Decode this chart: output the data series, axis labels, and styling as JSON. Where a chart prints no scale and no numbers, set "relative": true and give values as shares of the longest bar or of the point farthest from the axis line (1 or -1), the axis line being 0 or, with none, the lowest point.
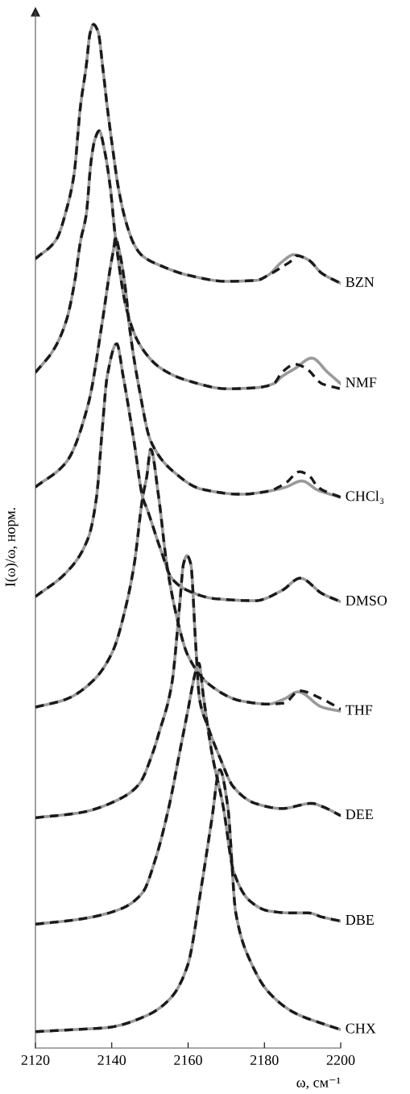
{
  "chart_data": {
    "type": "line",
    "relative": true,
    "xlabel": "ω, см⁻¹",
    "ylabel": "I(ω)/ω, норм.",
    "xlim": [
      2120,
      2200
    ],
    "xticks": [
      2120,
      2140,
      2160,
      2180,
      2200
    ],
    "legend": false,
    "grid": false,
    "series": [
      {
        "name": "BZN",
        "color": "#9a9a9a",
        "line_style": "solid",
        "x": [
          2120,
          2125.5,
          2128.2,
          2130.1,
          2131.8,
          2133.3,
          2134.3,
          2135.2,
          2136.4,
          2137.7,
          2138.8,
          2140.3,
          2141.7,
          2143.8,
          2146,
          2148,
          2153,
          2160,
          2170,
          2178,
          2181,
          2184.6,
          2187.7,
          2191.5,
          2195,
          2200
        ],
        "values": [
          0.771,
          0.79,
          0.82,
          0.853,
          0.92,
          0.959,
          0.991,
          1.0,
          0.993,
          0.956,
          0.92,
          0.877,
          0.841,
          0.806,
          0.784,
          0.774,
          0.764,
          0.755,
          0.749,
          0.75,
          0.755,
          0.768,
          0.775,
          0.77,
          0.757,
          0.747
        ]
      },
      {
        "color": "#1a1a1a",
        "line_style": "dashed",
        "x": [
          2120,
          2125.5,
          2128.2,
          2130.1,
          2131.8,
          2133.3,
          2134.3,
          2135.2,
          2136.4,
          2137.7,
          2138.8,
          2140.3,
          2141.7,
          2143.8,
          2146,
          2148,
          2153,
          2160,
          2170,
          2178,
          2181,
          2184.6,
          2187.7,
          2188.4,
          2191.5,
          2195,
          2200
        ],
        "values": [
          0.771,
          0.79,
          0.82,
          0.853,
          0.92,
          0.959,
          0.991,
          1.0,
          0.993,
          0.956,
          0.92,
          0.877,
          0.841,
          0.806,
          0.784,
          0.774,
          0.764,
          0.755,
          0.749,
          0.75,
          0.755,
          0.763,
          0.771,
          0.774,
          0.77,
          0.757,
          0.747
        ]
      },
      {
        "name": "NMF",
        "color": "#9a9a9a",
        "line_style": "solid",
        "x": [
          2120,
          2124.9,
          2128.2,
          2130.3,
          2131.8,
          2133.3,
          2134.6,
          2135.6,
          2136.7,
          2138.1,
          2139.6,
          2140.9,
          2143.8,
          2147.2,
          2152.9,
          2159.9,
          2170.4,
          2177.6,
          2182.4,
          2184.6,
          2188.1,
          2192.4,
          2196.6,
          2200
        ],
        "values": [
          0.66,
          0.683,
          0.712,
          0.749,
          0.788,
          0.814,
          0.867,
          0.888,
          0.896,
          0.877,
          0.841,
          0.794,
          0.723,
          0.688,
          0.664,
          0.652,
          0.644,
          0.645,
          0.649,
          0.656,
          0.664,
          0.674,
          0.66,
          0.649
        ]
      },
      {
        "color": "#1a1a1a",
        "line_style": "dashed",
        "x": [
          2120,
          2124.9,
          2128.2,
          2130.3,
          2131.8,
          2133.3,
          2134.6,
          2135.6,
          2136.7,
          2138.1,
          2139.6,
          2140.9,
          2143.8,
          2147.2,
          2152.9,
          2159.9,
          2170.4,
          2177.6,
          2182.4,
          2184.6,
          2188.1,
          2190.9,
          2195.1,
          2200
        ],
        "values": [
          0.66,
          0.683,
          0.712,
          0.749,
          0.788,
          0.814,
          0.867,
          0.888,
          0.896,
          0.877,
          0.841,
          0.794,
          0.723,
          0.688,
          0.664,
          0.652,
          0.644,
          0.645,
          0.649,
          0.66,
          0.668,
          0.664,
          0.649,
          0.644
        ]
      },
      {
        "name": "CHCl₃",
        "color": "#9a9a9a",
        "line_style": "solid",
        "x": [
          2120,
          2128.2,
          2133.9,
          2137.5,
          2139.6,
          2140.7,
          2140.9,
          2141.9,
          2143.8,
          2144.5,
          2147.2,
          2150.2,
          2156.5,
          2163.5,
          2174,
          2181,
          2185.6,
          2189.8,
          2194,
          2200
        ],
        "values": [
          0.548,
          0.573,
          0.63,
          0.709,
          0.762,
          0.786,
          0.792,
          0.78,
          0.735,
          0.709,
          0.644,
          0.593,
          0.562,
          0.546,
          0.541,
          0.544,
          0.548,
          0.554,
          0.545,
          0.538
        ]
      },
      {
        "color": "#1a1a1a",
        "line_style": "dashed",
        "x": [
          2120,
          2128.2,
          2133.9,
          2137.5,
          2139.6,
          2140.7,
          2140.9,
          2141.9,
          2143.8,
          2144.5,
          2147.2,
          2150.2,
          2156.5,
          2163.5,
          2174,
          2181,
          2185.6,
          2189.2,
          2192,
          2194,
          2200
        ],
        "values": [
          0.548,
          0.573,
          0.63,
          0.709,
          0.762,
          0.786,
          0.792,
          0.78,
          0.735,
          0.709,
          0.644,
          0.593,
          0.562,
          0.546,
          0.541,
          0.544,
          0.552,
          0.563,
          0.558,
          0.548,
          0.538
        ]
      },
      {
        "name": "DMSO",
        "color": "#9a9a9a",
        "line_style": "solid",
        "x": [
          2120,
          2128.2,
          2133.9,
          2136,
          2137.5,
          2138.8,
          2141.3,
          2143,
          2145.9,
          2148.1,
          2149.3,
          2152.9,
          2155.7,
          2159.9,
          2167,
          2177.6,
          2184.6,
          2189.4,
          2195.1,
          2200
        ],
        "values": [
          0.441,
          0.465,
          0.499,
          0.538,
          0.604,
          0.656,
          0.688,
          0.656,
          0.591,
          0.538,
          0.526,
          0.486,
          0.459,
          0.447,
          0.439,
          0.437,
          0.447,
          0.459,
          0.444,
          0.436
        ]
      },
      {
        "color": "#1a1a1a",
        "line_style": "dashed",
        "x": [
          2120,
          2128.2,
          2133.9,
          2136,
          2137.5,
          2138.8,
          2141.3,
          2143,
          2145.9,
          2148.1,
          2149.3,
          2152.9,
          2155.7,
          2159.9,
          2167,
          2177.6,
          2184.6,
          2189.4,
          2195.1,
          2200
        ],
        "values": [
          0.441,
          0.465,
          0.499,
          0.538,
          0.604,
          0.656,
          0.688,
          0.656,
          0.591,
          0.538,
          0.526,
          0.486,
          0.459,
          0.447,
          0.439,
          0.437,
          0.447,
          0.459,
          0.444,
          0.436
        ]
      },
      {
        "name": "THF",
        "color": "#9a9a9a",
        "line_style": "solid",
        "x": [
          2120,
          2128.2,
          2135.4,
          2140.3,
          2143.8,
          2145.9,
          2148.1,
          2149.2,
          2150.2,
          2152.3,
          2154.4,
          2157.1,
          2159.9,
          2165.6,
          2174,
          2181,
          2185.2,
          2188.8,
          2195.1,
          2200
        ],
        "values": [
          0.333,
          0.341,
          0.36,
          0.388,
          0.433,
          0.473,
          0.538,
          0.559,
          0.585,
          0.538,
          0.473,
          0.42,
          0.384,
          0.355,
          0.339,
          0.336,
          0.341,
          0.348,
          0.333,
          0.329
        ]
      },
      {
        "color": "#1a1a1a",
        "line_style": "dashed",
        "x": [
          2120,
          2128.2,
          2135.4,
          2140.3,
          2143.8,
          2145.9,
          2148.1,
          2149.2,
          2150.2,
          2152.3,
          2154.4,
          2157.1,
          2159.9,
          2165.6,
          2174,
          2181,
          2185.2,
          2189.2,
          2195.1,
          2200
        ],
        "values": [
          0.333,
          0.341,
          0.36,
          0.388,
          0.433,
          0.473,
          0.538,
          0.559,
          0.585,
          0.538,
          0.473,
          0.42,
          0.384,
          0.355,
          0.339,
          0.336,
          0.337,
          0.349,
          0.341,
          0.331
        ]
      },
      {
        "name": "DEE",
        "color": "#9a9a9a",
        "line_style": "solid",
        "x": [
          2120,
          2131.8,
          2142.4,
          2147.2,
          2150.8,
          2152.3,
          2155.7,
          2157.8,
          2158.8,
          2159.7,
          2160.7,
          2162,
          2163,
          2165.1,
          2168.3,
          2171.9,
          2177.6,
          2184.6,
          2192.4,
          2195.1,
          2200
        ],
        "values": [
          0.225,
          0.23,
          0.244,
          0.258,
          0.289,
          0.307,
          0.355,
          0.433,
          0.473,
          0.481,
          0.473,
          0.394,
          0.341,
          0.315,
          0.284,
          0.255,
          0.239,
          0.234,
          0.239,
          0.236,
          0.227
        ]
      },
      {
        "color": "#1a1a1a",
        "line_style": "dashed",
        "x": [
          2120,
          2131.8,
          2142.4,
          2147.2,
          2150.8,
          2152.3,
          2155.7,
          2157.8,
          2158.8,
          2159.7,
          2160.7,
          2162,
          2163,
          2165.1,
          2168.3,
          2171.9,
          2177.6,
          2184.6,
          2192.4,
          2195.1,
          2200
        ],
        "values": [
          0.225,
          0.23,
          0.244,
          0.258,
          0.289,
          0.307,
          0.355,
          0.433,
          0.473,
          0.481,
          0.473,
          0.394,
          0.341,
          0.315,
          0.284,
          0.255,
          0.239,
          0.234,
          0.239,
          0.236,
          0.227
        ]
      },
      {
        "name": "DBE",
        "color": "#9a9a9a",
        "line_style": "solid",
        "x": [
          2120,
          2131.8,
          2142.4,
          2148.1,
          2151.4,
          2155,
          2157.8,
          2159.9,
          2162,
          2162.8,
          2164.1,
          2166.2,
          2169.2,
          2171.9,
          2176.1,
          2181,
          2186.7,
          2191.5,
          2195.1,
          2200
        ],
        "values": [
          0.121,
          0.126,
          0.136,
          0.152,
          0.184,
          0.236,
          0.289,
          0.329,
          0.368,
          0.376,
          0.341,
          0.289,
          0.236,
          0.173,
          0.144,
          0.134,
          0.132,
          0.132,
          0.128,
          0.124
        ]
      },
      {
        "color": "#1a1a1a",
        "line_style": "dashed",
        "x": [
          2120,
          2131.8,
          2142.4,
          2148.1,
          2151.4,
          2155,
          2157.8,
          2159.9,
          2162,
          2162.8,
          2164.1,
          2166.2,
          2169.2,
          2171.9,
          2176.1,
          2181,
          2186.7,
          2191.5,
          2195.1,
          2200
        ],
        "values": [
          0.121,
          0.126,
          0.136,
          0.152,
          0.184,
          0.236,
          0.289,
          0.329,
          0.368,
          0.376,
          0.341,
          0.289,
          0.236,
          0.173,
          0.144,
          0.134,
          0.132,
          0.132,
          0.128,
          0.124
        ]
      },
      {
        "name": "CHX",
        "color": "#9a9a9a",
        "line_style": "solid",
        "x": [
          2120,
          2130,
          2138.8,
          2149.3,
          2155.7,
          2159.9,
          2163.5,
          2166.2,
          2168.3,
          2170.4,
          2172.5,
          2176.8,
          2181,
          2188.1,
          2195.1,
          2200
        ],
        "values": [
          0.016,
          0.018,
          0.02,
          0.032,
          0.05,
          0.081,
          0.158,
          0.223,
          0.272,
          0.236,
          0.132,
          0.081,
          0.055,
          0.034,
          0.024,
          0.018
        ]
      },
      {
        "color": "#1a1a1a",
        "line_style": "dashed",
        "x": [
          2120,
          2130,
          2138.8,
          2149.3,
          2155.7,
          2159.9,
          2163.5,
          2166.2,
          2168.3,
          2170.4,
          2172.5,
          2176.8,
          2181,
          2188.1,
          2195.1,
          2200
        ],
        "values": [
          0.016,
          0.018,
          0.02,
          0.032,
          0.05,
          0.081,
          0.158,
          0.223,
          0.272,
          0.236,
          0.132,
          0.081,
          0.055,
          0.034,
          0.024,
          0.018
        ]
      }
    ]
  }
}
